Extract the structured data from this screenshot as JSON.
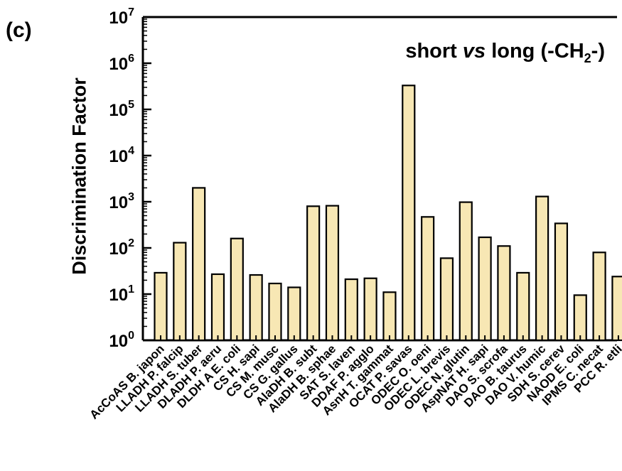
{
  "panel_label": "(c)",
  "annotation": {
    "prefix": "short ",
    "italic": "vs",
    "middle": " long (-CH",
    "sub": "2",
    "suffix": "-)"
  },
  "colors": {
    "bar_fill": "#f7e7b4",
    "bar_stroke": "#000000",
    "axis": "#000000"
  },
  "chart_data": {
    "type": "bar",
    "yscale": "log",
    "ylabel": "Discrimination Factor",
    "xlabel": "",
    "ylim": [
      1,
      10000000
    ],
    "ytick_labels": [
      {
        "base": "10",
        "exp": "0"
      },
      {
        "base": "10",
        "exp": "1"
      },
      {
        "base": "10",
        "exp": "2"
      },
      {
        "base": "10",
        "exp": "3"
      },
      {
        "base": "10",
        "exp": "4"
      },
      {
        "base": "10",
        "exp": "5"
      },
      {
        "base": "10",
        "exp": "6"
      },
      {
        "base": "10",
        "exp": "7"
      }
    ],
    "grid": false,
    "categories": [
      "AcCoAS B. japon",
      "LLADH P. falcip",
      "LLADH S. tuber",
      "DLADH P. aeru",
      "DLDH A E. coli",
      "CS H. sapi",
      "CS M. musc",
      "CS G. gallus",
      "AlaDH B. subt",
      "AlaDH B. sphae",
      "SAT S. laven",
      "DDAF P. agglo",
      "AsnH T. gammat",
      "OCAT P. savas",
      "ODEC O. oeni",
      "ODEC L. brevis",
      "ODEC N. glutin",
      "AspNAT H. sapi",
      "DAO S. scrofa",
      "DAO B. taurus",
      "DAO V. humic",
      "SDH S. cerev",
      "NAOD E. coli",
      "IPMS C. necat",
      "PCC R. etli"
    ],
    "values": [
      29,
      130,
      2000,
      27,
      160,
      26,
      17,
      14,
      800,
      820,
      21,
      22,
      11,
      330000,
      470,
      60,
      980,
      170,
      110,
      29,
      1300,
      340,
      9.5,
      80,
      24
    ]
  }
}
